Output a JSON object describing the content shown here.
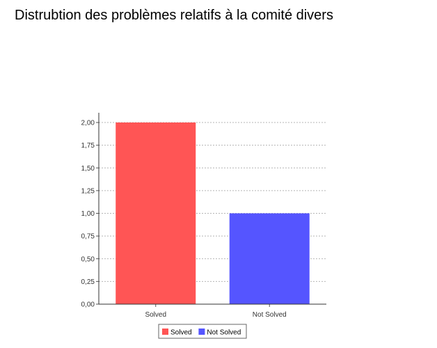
{
  "title": "Distrubtion des problèmes relatifs à la comité divers",
  "chart_data": {
    "type": "bar",
    "categories": [
      "Solved",
      "Not Solved"
    ],
    "values": [
      2,
      1
    ],
    "colors": [
      "#ff5555",
      "#5555ff"
    ],
    "ylim": [
      0,
      2
    ],
    "yticks": [
      0,
      0.25,
      0.5,
      0.75,
      1.0,
      1.25,
      1.5,
      1.75,
      2.0
    ],
    "ytick_labels": [
      "0,00",
      "0,25",
      "0,50",
      "0,75",
      "1,00",
      "1,25",
      "1,50",
      "1,75",
      "2,00"
    ],
    "grid": true,
    "legend_position": "bottom-center",
    "legend": [
      "Solved",
      "Not Solved"
    ]
  }
}
